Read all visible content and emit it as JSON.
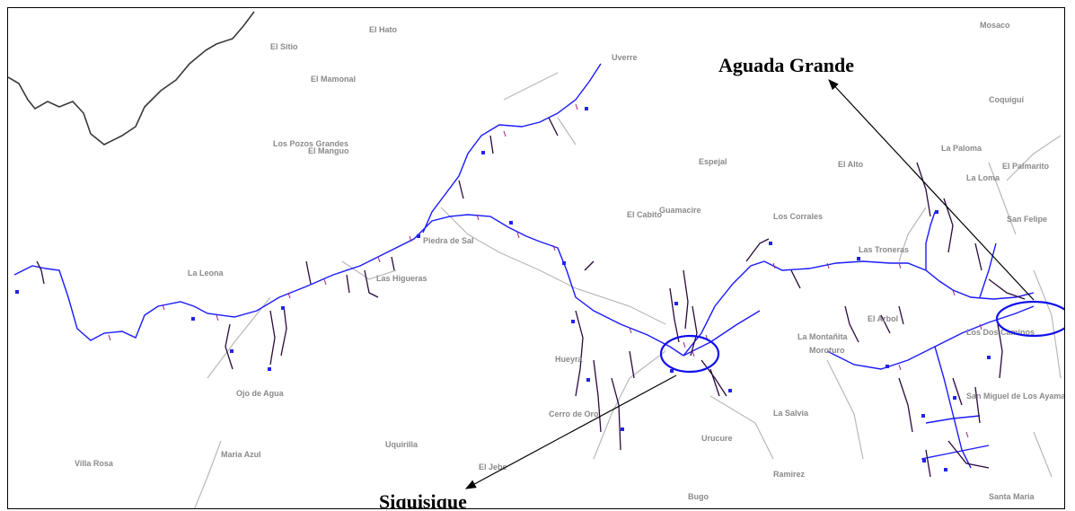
{
  "map": {
    "callouts": {
      "aguada_grande": "Aguada Grande",
      "siquisique": "Siquisique"
    },
    "place_labels": [
      "El Hato",
      "El Sitio",
      "El Mamonal",
      "Uverre",
      "Los Pozos Grandes",
      "El Manguo",
      "La Leona",
      "Las Higueras",
      "Piedra de Sal",
      "Ojo de Agua",
      "Villa Rosa",
      "Maria Azul",
      "Uquirilla",
      "El Jebe",
      "Cerro de Oro",
      "Guamacire",
      "El Cabito",
      "Espejal",
      "El Alto",
      "Los Corrales",
      "La Montañita",
      "La Salvia",
      "Las Troneras",
      "Moroturo",
      "Los Dos Caminos",
      "San Miguel de Los Ayamanes",
      "La Loma",
      "La Paloma",
      "El Palmarito",
      "San Felipe",
      "Coquiguí",
      "Mosaco",
      "Hueyra",
      "Ramirez",
      "Santa Maria",
      "El Arbol",
      "Urucure",
      "Bugo"
    ],
    "colors": {
      "road": "#1a1aff",
      "settlement": "#2a0a3c",
      "rural_road": "#b8b8b8",
      "border": "#3a3a3a",
      "highlight_ellipse": "#1010ee",
      "marker": "#2222ee",
      "label": "#8a8a8a"
    }
  }
}
